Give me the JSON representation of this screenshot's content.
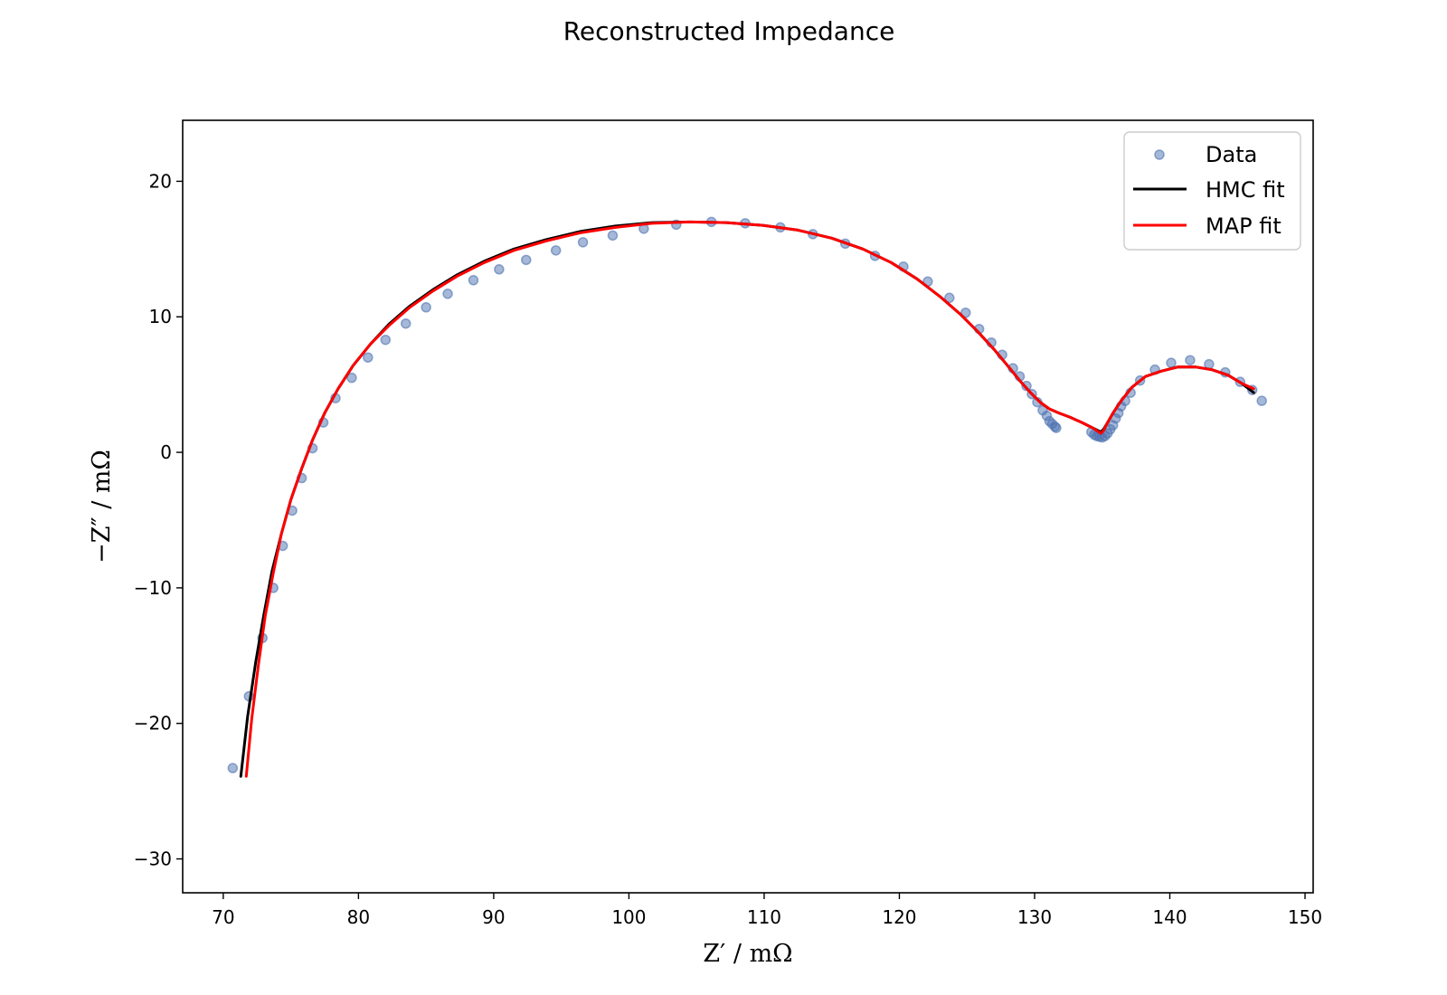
{
  "chart_data": {
    "type": "scatter",
    "title": "Reconstructed Impedance",
    "xlabel": "Z′ / mΩ",
    "ylabel": "−Z″ / mΩ",
    "xlim": [
      67,
      150.6
    ],
    "ylim": [
      -32.5,
      24.5
    ],
    "xticks": [
      70,
      80,
      90,
      100,
      110,
      120,
      130,
      140,
      150
    ],
    "yticks": [
      -30,
      -20,
      -10,
      0,
      10,
      20
    ],
    "xtick_labels": [
      "70",
      "80",
      "90",
      "100",
      "110",
      "120",
      "130",
      "140",
      "150"
    ],
    "ytick_labels": [
      "−30",
      "−20",
      "−10",
      "0",
      "10",
      "20"
    ],
    "grid": false,
    "legend_position": "top-right",
    "series": [
      {
        "name": "Data",
        "kind": "scatter",
        "color": "#4c72b0",
        "x": [
          70.7,
          71.9,
          72.9,
          73.7,
          74.4,
          75.1,
          75.8,
          76.6,
          77.4,
          78.3,
          79.5,
          80.7,
          82.0,
          83.5,
          85.0,
          86.6,
          88.5,
          90.4,
          92.4,
          94.6,
          96.6,
          98.8,
          101.1,
          103.5,
          106.1,
          108.6,
          111.2,
          113.6,
          116.0,
          118.2,
          120.3,
          122.1,
          123.7,
          124.9,
          125.9,
          126.8,
          127.6,
          128.4,
          128.9,
          129.4,
          129.8,
          130.2,
          130.6,
          130.9,
          131.1,
          131.3,
          131.5,
          131.6,
          134.2,
          134.4,
          134.6,
          134.8,
          135.0,
          135.2,
          135.4,
          135.6,
          135.8,
          136.0,
          136.2,
          136.4,
          136.7,
          137.1,
          137.8,
          138.9,
          140.1,
          141.5,
          142.9,
          144.1,
          145.2,
          146.1,
          146.8
        ],
        "y": [
          -23.3,
          -18.0,
          -13.7,
          -10.0,
          -6.9,
          -4.3,
          -1.9,
          0.3,
          2.2,
          4.0,
          5.5,
          7.0,
          8.3,
          9.5,
          10.7,
          11.7,
          12.7,
          13.5,
          14.2,
          14.9,
          15.5,
          16.0,
          16.5,
          16.8,
          17.0,
          16.9,
          16.6,
          16.1,
          15.4,
          14.5,
          13.7,
          12.6,
          11.4,
          10.3,
          9.1,
          8.1,
          7.2,
          6.2,
          5.6,
          4.9,
          4.3,
          3.7,
          3.1,
          2.7,
          2.3,
          2.1,
          1.9,
          1.8,
          1.5,
          1.3,
          1.2,
          1.15,
          1.1,
          1.2,
          1.4,
          1.7,
          2.0,
          2.5,
          2.9,
          3.4,
          3.8,
          4.4,
          5.3,
          6.1,
          6.6,
          6.8,
          6.5,
          5.9,
          5.2,
          4.6,
          3.8
        ]
      },
      {
        "name": "HMC fit",
        "kind": "line",
        "color": "#000000",
        "x": [
          71.3,
          71.8,
          72.4,
          73.0,
          73.6,
          74.3,
          75.0,
          75.8,
          76.6,
          77.5,
          78.5,
          79.6,
          80.9,
          82.3,
          83.8,
          85.5,
          87.3,
          89.3,
          91.5,
          93.9,
          96.4,
          99.0,
          101.7,
          104.5,
          107.2,
          109.9,
          112.5,
          115.0,
          117.3,
          119.4,
          121.3,
          123.0,
          124.5,
          125.8,
          127.0,
          128.0,
          128.9,
          129.7,
          130.4,
          131.1,
          131.8,
          132.6,
          133.5,
          134.3,
          134.9,
          135.1,
          135.4,
          135.8,
          136.4,
          137.2,
          138.2,
          139.4,
          140.6,
          141.9,
          143.1,
          144.3,
          145.3,
          146.2
        ],
        "y": [
          -23.9,
          -19.5,
          -15.5,
          -12.0,
          -8.8,
          -6.0,
          -3.5,
          -1.2,
          0.9,
          2.9,
          4.7,
          6.4,
          8.0,
          9.5,
          10.8,
          12.0,
          13.1,
          14.1,
          15.0,
          15.7,
          16.3,
          16.7,
          16.95,
          17.0,
          16.95,
          16.75,
          16.4,
          15.8,
          15.0,
          14.0,
          12.8,
          11.5,
          10.2,
          8.9,
          7.6,
          6.4,
          5.3,
          4.4,
          3.7,
          3.2,
          2.9,
          2.6,
          2.2,
          1.8,
          1.5,
          1.7,
          2.2,
          2.9,
          3.8,
          4.8,
          5.6,
          6.0,
          6.3,
          6.3,
          6.1,
          5.7,
          5.1,
          4.4
        ]
      },
      {
        "name": "MAP fit",
        "kind": "line",
        "color": "#ff0000",
        "x": [
          71.7,
          72.1,
          72.6,
          73.1,
          73.7,
          74.3,
          75.0,
          75.8,
          76.6,
          77.5,
          78.5,
          79.6,
          80.9,
          82.3,
          83.8,
          85.5,
          87.3,
          89.3,
          91.5,
          93.9,
          96.4,
          99.0,
          101.7,
          104.5,
          107.2,
          109.9,
          112.5,
          115.0,
          117.3,
          119.4,
          121.3,
          123.0,
          124.5,
          125.8,
          127.0,
          128.0,
          128.9,
          129.7,
          130.4,
          131.1,
          131.8,
          132.6,
          133.5,
          134.3,
          134.9,
          135.1,
          135.4,
          135.8,
          136.4,
          137.2,
          138.2,
          139.4,
          140.6,
          141.9,
          143.1,
          144.3,
          145.3,
          146.2
        ],
        "y": [
          -23.9,
          -19.7,
          -15.7,
          -12.1,
          -8.9,
          -6.0,
          -3.5,
          -1.2,
          0.9,
          2.9,
          4.7,
          6.4,
          8.0,
          9.4,
          10.7,
          11.9,
          13.0,
          14.0,
          14.9,
          15.6,
          16.2,
          16.6,
          16.9,
          17.0,
          16.95,
          16.75,
          16.4,
          15.8,
          15.0,
          14.0,
          12.8,
          11.5,
          10.2,
          8.9,
          7.6,
          6.4,
          5.3,
          4.4,
          3.7,
          3.2,
          2.9,
          2.6,
          2.2,
          1.8,
          1.4,
          1.6,
          2.2,
          2.9,
          3.8,
          4.8,
          5.6,
          6.0,
          6.3,
          6.3,
          6.1,
          5.7,
          5.1,
          4.7
        ]
      }
    ]
  }
}
